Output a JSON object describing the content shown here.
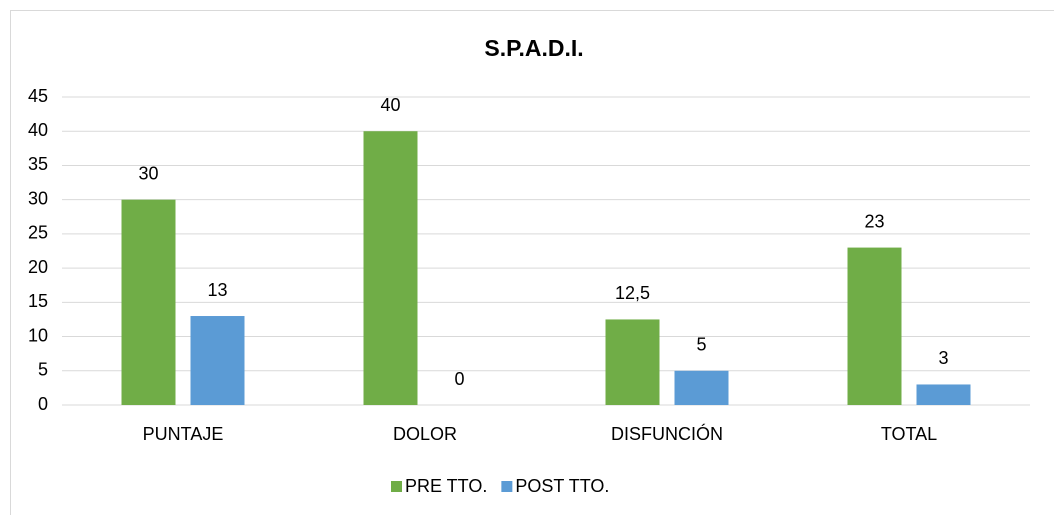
{
  "chart_data": {
    "type": "bar",
    "title": "S.P.A.D.I.",
    "categories": [
      "PUNTAJE",
      "DOLOR",
      "DISFUNCIÓN",
      "TOTAL"
    ],
    "series": [
      {
        "name": "PRE TTO.",
        "color": "#70ad47",
        "values": [
          30,
          40,
          12.5,
          23
        ],
        "value_labels": [
          "30",
          "40",
          "12,5",
          "23"
        ]
      },
      {
        "name": "POST TTO.",
        "color": "#5b9bd5",
        "values": [
          13,
          0,
          5,
          3
        ]
      }
    ],
    "ylim": [
      0,
      45
    ],
    "yticks": [
      0,
      5,
      10,
      15,
      20,
      25,
      30,
      35,
      40,
      45
    ],
    "grid": true,
    "legend": "bottom"
  }
}
